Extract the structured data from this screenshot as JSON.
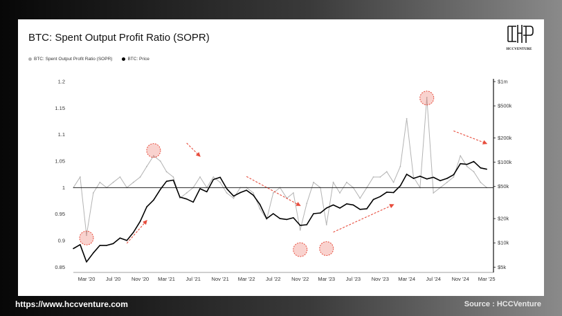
{
  "chart_data": {
    "type": "line",
    "title": "BTC: Spent Output Profit Ratio (SOPR)",
    "x_range": [
      "2020-01",
      "2025-03"
    ],
    "x_tick_labels": [
      "Mar '20",
      "Jul '20",
      "Nov '20",
      "Mar '21",
      "Jul '21",
      "Nov '21",
      "Mar '22",
      "Jul '22",
      "Nov '22",
      "Mar '23",
      "Jul '23",
      "Nov '23",
      "Mar '24",
      "Jul '24",
      "Nov '24",
      "Mar '25"
    ],
    "y_left": {
      "ticks": [
        "1.2",
        "1.15",
        "1.1",
        "1.05",
        "1",
        "0.95",
        "0.9",
        "0.85"
      ],
      "ylim": [
        0.84,
        1.2
      ]
    },
    "y_right": {
      "ticks": [
        "$1m",
        "$500k",
        "$200k",
        "$100k",
        "$50k",
        "$20k",
        "$10k",
        "$5k"
      ],
      "scale": "log"
    },
    "reference_line": 1.0,
    "series": [
      {
        "name": "BTC: Spent Output Profit Ratio (SOPR)",
        "axis": "left",
        "color": "#b3b3b3",
        "points": [
          [
            "2020-01",
            1.0
          ],
          [
            "2020-02",
            1.02
          ],
          [
            "2020-03",
            0.91
          ],
          [
            "2020-04",
            0.99
          ],
          [
            "2020-05",
            1.01
          ],
          [
            "2020-06",
            1.0
          ],
          [
            "2020-07",
            1.01
          ],
          [
            "2020-08",
            1.02
          ],
          [
            "2020-09",
            1.0
          ],
          [
            "2020-10",
            1.01
          ],
          [
            "2020-11",
            1.02
          ],
          [
            "2020-12",
            1.04
          ],
          [
            "2021-01",
            1.06
          ],
          [
            "2021-02",
            1.05
          ],
          [
            "2021-03",
            1.03
          ],
          [
            "2021-04",
            1.02
          ],
          [
            "2021-05",
            0.98
          ],
          [
            "2021-06",
            0.99
          ],
          [
            "2021-07",
            1.0
          ],
          [
            "2021-08",
            1.02
          ],
          [
            "2021-09",
            1.0
          ],
          [
            "2021-10",
            1.02
          ],
          [
            "2021-11",
            1.01
          ],
          [
            "2021-12",
            0.99
          ],
          [
            "2022-01",
            0.98
          ],
          [
            "2022-02",
            1.0
          ],
          [
            "2022-03",
            1.0
          ],
          [
            "2022-04",
            0.99
          ],
          [
            "2022-05",
            0.96
          ],
          [
            "2022-06",
            0.94
          ],
          [
            "2022-07",
            0.99
          ],
          [
            "2022-08",
            1.0
          ],
          [
            "2022-09",
            0.98
          ],
          [
            "2022-10",
            0.99
          ],
          [
            "2022-11",
            0.92
          ],
          [
            "2022-12",
            0.97
          ],
          [
            "2023-01",
            1.01
          ],
          [
            "2023-02",
            1.0
          ],
          [
            "2023-03",
            0.93
          ],
          [
            "2023-04",
            1.01
          ],
          [
            "2023-05",
            0.99
          ],
          [
            "2023-06",
            1.01
          ],
          [
            "2023-07",
            1.0
          ],
          [
            "2023-08",
            0.98
          ],
          [
            "2023-09",
            1.0
          ],
          [
            "2023-10",
            1.02
          ],
          [
            "2023-11",
            1.02
          ],
          [
            "2023-12",
            1.03
          ],
          [
            "2024-01",
            1.01
          ],
          [
            "2024-02",
            1.04
          ],
          [
            "2024-03",
            1.13
          ],
          [
            "2024-04",
            1.02
          ],
          [
            "2024-05",
            1.0
          ],
          [
            "2024-06",
            1.17
          ],
          [
            "2024-07",
            0.99
          ],
          [
            "2024-08",
            1.0
          ],
          [
            "2024-09",
            1.01
          ],
          [
            "2024-10",
            1.02
          ],
          [
            "2024-11",
            1.06
          ],
          [
            "2024-12",
            1.04
          ],
          [
            "2025-01",
            1.03
          ],
          [
            "2025-02",
            1.01
          ],
          [
            "2025-03",
            1.0
          ]
        ]
      },
      {
        "name": "BTC: Price",
        "axis": "right",
        "color": "#000000",
        "points": [
          [
            "2020-01",
            8500
          ],
          [
            "2020-02",
            9500
          ],
          [
            "2020-03",
            5800
          ],
          [
            "2020-04",
            7500
          ],
          [
            "2020-05",
            9300
          ],
          [
            "2020-06",
            9300
          ],
          [
            "2020-07",
            9800
          ],
          [
            "2020-08",
            11500
          ],
          [
            "2020-09",
            10700
          ],
          [
            "2020-10",
            13500
          ],
          [
            "2020-11",
            18500
          ],
          [
            "2020-12",
            28000
          ],
          [
            "2021-01",
            34000
          ],
          [
            "2021-02",
            46000
          ],
          [
            "2021-03",
            58000
          ],
          [
            "2021-04",
            60000
          ],
          [
            "2021-05",
            37000
          ],
          [
            "2021-06",
            35000
          ],
          [
            "2021-07",
            32000
          ],
          [
            "2021-08",
            47000
          ],
          [
            "2021-09",
            43000
          ],
          [
            "2021-10",
            61000
          ],
          [
            "2021-11",
            65000
          ],
          [
            "2021-12",
            47000
          ],
          [
            "2022-01",
            38000
          ],
          [
            "2022-02",
            42000
          ],
          [
            "2022-03",
            45000
          ],
          [
            "2022-04",
            39000
          ],
          [
            "2022-05",
            30000
          ],
          [
            "2022-06",
            20000
          ],
          [
            "2022-07",
            23000
          ],
          [
            "2022-08",
            20000
          ],
          [
            "2022-09",
            19500
          ],
          [
            "2022-10",
            20500
          ],
          [
            "2022-11",
            16500
          ],
          [
            "2022-12",
            16800
          ],
          [
            "2023-01",
            23000
          ],
          [
            "2023-02",
            23500
          ],
          [
            "2023-03",
            27000
          ],
          [
            "2023-04",
            29500
          ],
          [
            "2023-05",
            27000
          ],
          [
            "2023-06",
            30500
          ],
          [
            "2023-07",
            29500
          ],
          [
            "2023-08",
            26000
          ],
          [
            "2023-09",
            26500
          ],
          [
            "2023-10",
            34500
          ],
          [
            "2023-11",
            37500
          ],
          [
            "2023-12",
            42500
          ],
          [
            "2024-01",
            42000
          ],
          [
            "2024-02",
            51000
          ],
          [
            "2024-03",
            71000
          ],
          [
            "2024-04",
            63000
          ],
          [
            "2024-05",
            67000
          ],
          [
            "2024-06",
            62000
          ],
          [
            "2024-07",
            65000
          ],
          [
            "2024-08",
            59000
          ],
          [
            "2024-09",
            63000
          ],
          [
            "2024-10",
            70000
          ],
          [
            "2024-11",
            96000
          ],
          [
            "2024-12",
            94000
          ],
          [
            "2025-01",
            102000
          ],
          [
            "2025-02",
            85000
          ],
          [
            "2025-03",
            82000
          ]
        ]
      }
    ],
    "annotations": {
      "circles": [
        {
          "date": "2020-03",
          "axis": "left",
          "value": 0.905
        },
        {
          "date": "2021-01",
          "axis": "left",
          "value": 1.07
        },
        {
          "date": "2022-11",
          "axis": "left",
          "value": 0.883
        },
        {
          "date": "2023-03",
          "axis": "left",
          "value": 0.885
        },
        {
          "date": "2024-06",
          "axis": "left",
          "value": 1.169
        }
      ],
      "arrows": [
        {
          "from": [
            "2020-09",
            0.895
          ],
          "to": [
            "2020-12",
            0.938
          ]
        },
        {
          "from": [
            "2021-06",
            1.084
          ],
          "to": [
            "2021-08",
            1.059
          ]
        },
        {
          "from": [
            "2022-03",
            1.021
          ],
          "to": [
            "2022-11",
            0.966
          ]
        },
        {
          "from": [
            "2023-04",
            0.916
          ],
          "to": [
            "2024-01",
            0.968
          ]
        },
        {
          "from": [
            "2024-10",
            1.107
          ],
          "to": [
            "2025-03",
            1.083
          ]
        }
      ],
      "color": "#e74c3c"
    }
  },
  "logo": {
    "text": "HCCVENTURE"
  },
  "footer": {
    "url": "https://www.hccventure.com",
    "source": "Source : HCCVenture"
  }
}
